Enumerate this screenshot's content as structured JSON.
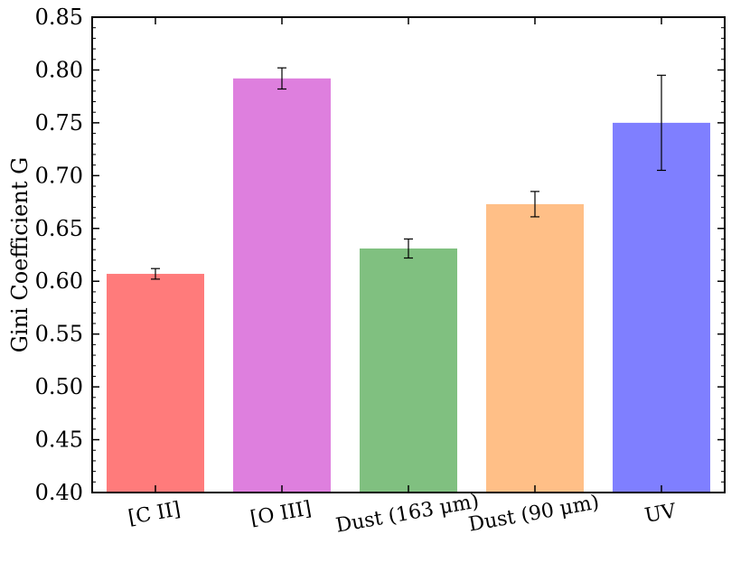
{
  "chart_data": {
    "type": "bar",
    "categories": [
      "[C II]",
      "[O III]",
      "Dust (163 μm)",
      "Dust (90 μm)",
      "UV"
    ],
    "values": [
      0.607,
      0.792,
      0.631,
      0.673,
      0.75
    ],
    "errors": [
      0.005,
      0.01,
      0.009,
      0.012,
      0.045
    ],
    "colors": [
      "#ff7b7b",
      "#de7fde",
      "#80c080",
      "#ffbf87",
      "#7f7fff"
    ],
    "ylabel": "Gini Coefficient G",
    "xlabel": "",
    "title": "",
    "ylim": [
      0.4,
      0.85
    ],
    "yticks": [
      "0.40",
      "0.45",
      "0.50",
      "0.55",
      "0.60",
      "0.65",
      "0.70",
      "0.75",
      "0.80",
      "0.85"
    ],
    "grid": false
  }
}
